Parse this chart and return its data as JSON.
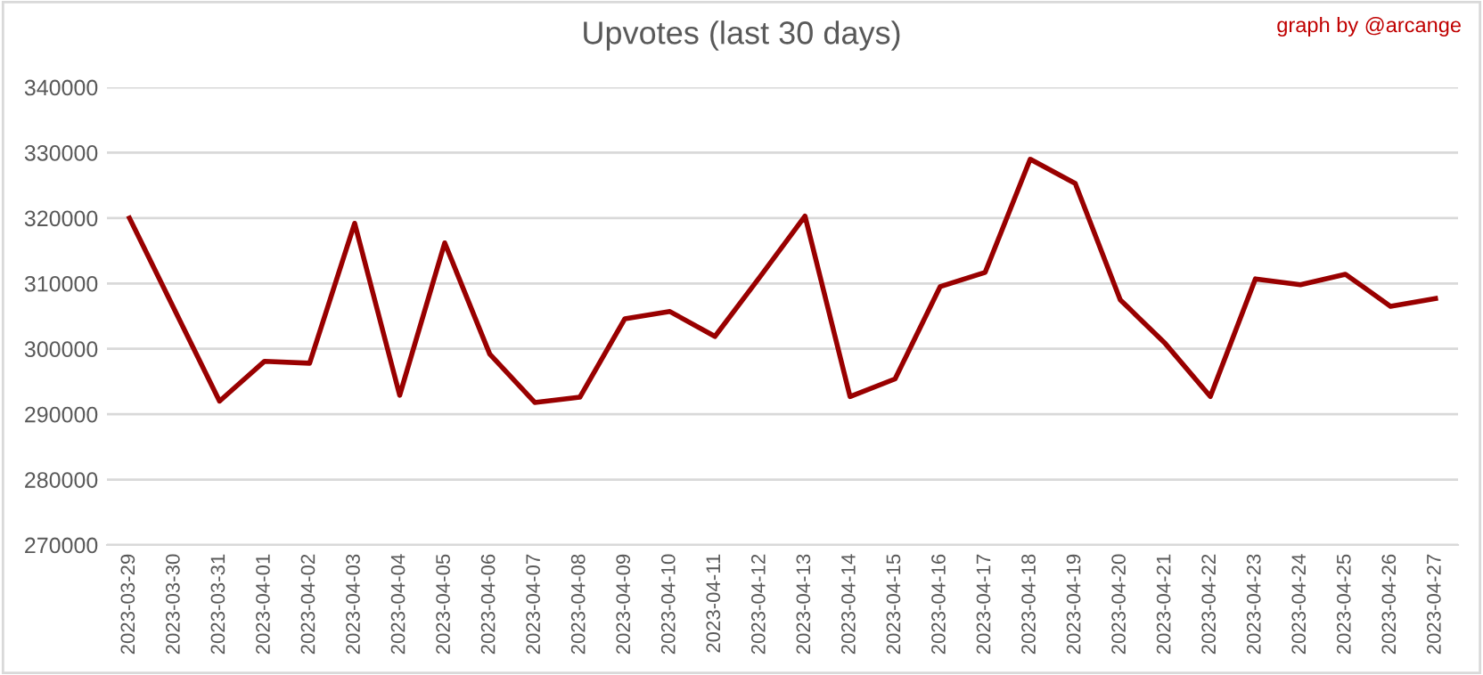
{
  "chart_data": {
    "type": "line",
    "title": "Upvotes (last 30 days)",
    "annotations": [
      "graph by @arcange"
    ],
    "categories": [
      "2023-03-29",
      "2023-03-30",
      "2023-03-31",
      "2023-04-01",
      "2023-04-02",
      "2023-04-03",
      "2023-04-04",
      "2023-04-05",
      "2023-04-06",
      "2023-04-07",
      "2023-04-08",
      "2023-04-09",
      "2023-04-10",
      "2023-04-11",
      "2023-04-12",
      "2023-04-13",
      "2023-04-14",
      "2023-04-15",
      "2023-04-16",
      "2023-04-17",
      "2023-04-18",
      "2023-04-19",
      "2023-04-20",
      "2023-04-21",
      "2023-04-22",
      "2023-04-23",
      "2023-04-24",
      "2023-04-25",
      "2023-04-26",
      "2023-04-27"
    ],
    "series": [
      {
        "color": "#990000",
        "values": [
          320000,
          306000,
          292000,
          298100,
          297800,
          319200,
          292900,
          316200,
          299200,
          291800,
          292600,
          304600,
          305700,
          301900,
          311000,
          320300,
          292700,
          295400,
          309500,
          311700,
          329000,
          325300,
          307500,
          300800,
          292700,
          310700,
          309800,
          311400,
          306500,
          307700
        ]
      }
    ],
    "ylim": [
      270000,
      340000
    ],
    "yticks": [
      270000,
      280000,
      290000,
      300000,
      310000,
      320000,
      330000,
      340000
    ],
    "grid": "y",
    "marker": "none",
    "line_style": "solid"
  }
}
